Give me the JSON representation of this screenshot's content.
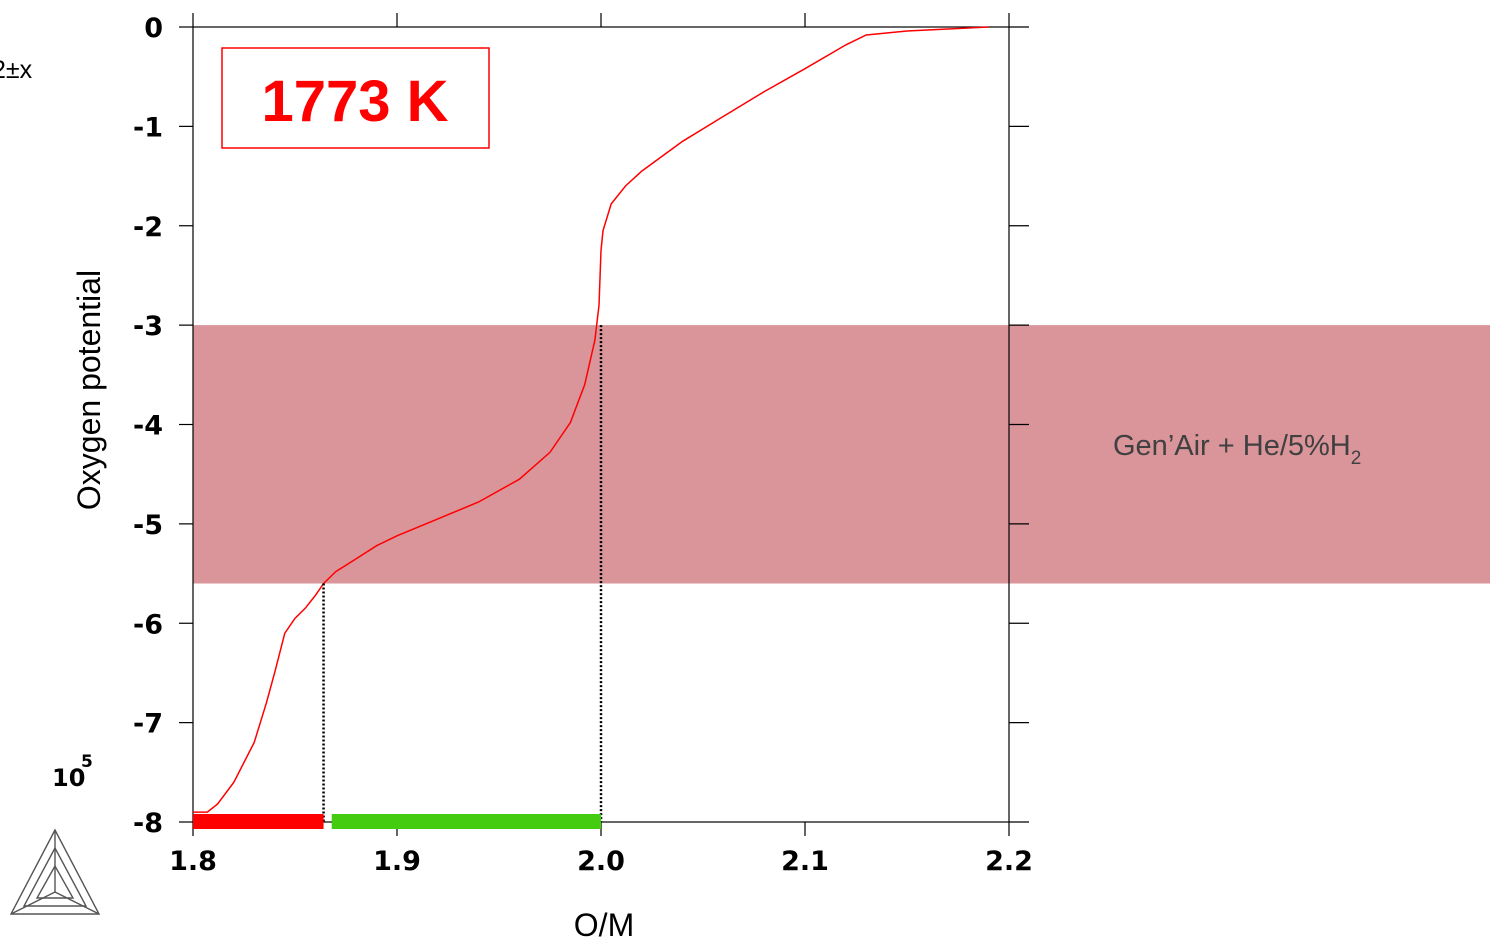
{
  "chart_data": {
    "type": "line",
    "xlabel": "O/M",
    "ylabel": "Oxygen potential",
    "xlim": [
      1.8,
      2.2
    ],
    "ylim": [
      -8,
      0
    ],
    "x_ticks": [
      "1.8",
      "1.9",
      "2.0",
      "2.1",
      "2.2"
    ],
    "y_ticks": [
      "0",
      "-1",
      "-2",
      "-3",
      "-4",
      "-5",
      "-6",
      "-7",
      "-8"
    ],
    "y_scale_label": {
      "base": "10",
      "exponent": "5"
    },
    "annotation": {
      "text": "1773 K",
      "color": "#ff0000"
    },
    "partial_text": "2±x",
    "band": {
      "y_from": -5.6,
      "y_to": -3.0,
      "color": "#d9959a",
      "label_main": "Gen’Air + He/5%H",
      "label_sub": "2"
    },
    "markers": [
      {
        "x": 1.864,
        "y_top": -5.6
      },
      {
        "x": 2.0,
        "y_top": -3.0
      }
    ],
    "ranges": [
      {
        "x_from": 1.8,
        "x_to": 1.864,
        "color": "#ff0000"
      },
      {
        "x_from": 1.868,
        "x_to": 2.0,
        "color": "#44cc11"
      }
    ],
    "series": [
      {
        "color": "#ff0000",
        "x": [
          1.8,
          1.807,
          1.812,
          1.82,
          1.83,
          1.836,
          1.84,
          1.845,
          1.85,
          1.855,
          1.86,
          1.864,
          1.87,
          1.88,
          1.89,
          1.9,
          1.92,
          1.94,
          1.96,
          1.975,
          1.985,
          1.992,
          1.997,
          1.999,
          2.0,
          2.001,
          2.005,
          2.012,
          2.02,
          2.04,
          2.06,
          2.08,
          2.1,
          2.12,
          2.13,
          2.14,
          2.15,
          2.16,
          2.17,
          2.18,
          2.19
        ],
        "y": [
          -7.9,
          -7.9,
          -7.82,
          -7.6,
          -7.2,
          -6.8,
          -6.5,
          -6.1,
          -5.95,
          -5.85,
          -5.72,
          -5.6,
          -5.48,
          -5.35,
          -5.22,
          -5.12,
          -4.95,
          -4.78,
          -4.55,
          -4.28,
          -3.98,
          -3.6,
          -3.15,
          -2.8,
          -2.25,
          -2.05,
          -1.78,
          -1.6,
          -1.45,
          -1.15,
          -0.9,
          -0.65,
          -0.42,
          -0.18,
          -0.08,
          -0.06,
          -0.04,
          -0.03,
          -0.02,
          -0.01,
          0.0
        ]
      }
    ]
  }
}
